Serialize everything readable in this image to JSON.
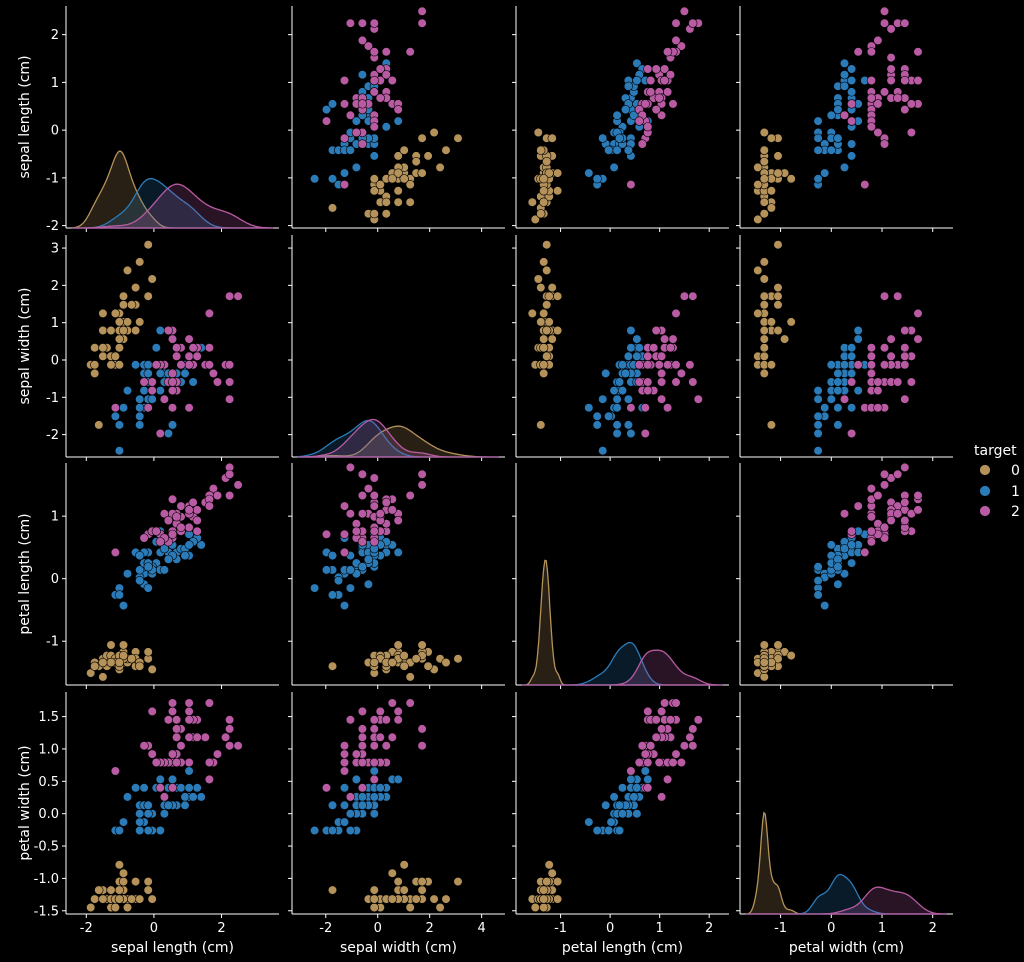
{
  "chart_data": {
    "type": "scatter",
    "title": "",
    "hue_title": "target",
    "legend_position": "right",
    "variables": [
      "sepal length (cm)",
      "sepal width (cm)",
      "petal length (cm)",
      "petal width (cm)"
    ],
    "classes": [
      {
        "label": "0",
        "color": "#b5925a"
      },
      {
        "label": "1",
        "color": "#2b7bb9"
      },
      {
        "label": "2",
        "color": "#b85ba3"
      }
    ],
    "axes": [
      {
        "label": "sepal length (cm)",
        "range": [
          -2.6,
          3.7
        ],
        "ticks": [
          "-2",
          "0",
          "2"
        ],
        "tick_values": [
          -2,
          0,
          2
        ]
      },
      {
        "label": "sepal width (cm)",
        "range": [
          -3.3,
          4.9
        ],
        "ticks": [
          "-2",
          "0",
          "2",
          "4"
        ],
        "tick_values": [
          -2,
          0,
          2,
          4
        ]
      },
      {
        "label": "petal length (cm)",
        "range": [
          -1.9,
          2.4
        ],
        "ticks": [
          "-1",
          "0",
          "1",
          "2"
        ],
        "tick_values": [
          -1,
          0,
          1,
          2
        ]
      },
      {
        "label": "petal width (cm)",
        "range": [
          -1.8,
          2.4
        ],
        "ticks": [
          "-1",
          "0",
          "1",
          "2"
        ],
        "tick_values": [
          -1,
          0,
          1,
          2
        ]
      }
    ],
    "y_axes": [
      {
        "range": [
          -2.05,
          2.6
        ],
        "ticks": [
          "-2",
          "-1",
          "0",
          "1",
          "2"
        ],
        "tick_values": [
          -2,
          -1,
          0,
          1,
          2
        ]
      },
      {
        "range": [
          -2.6,
          3.35
        ],
        "ticks": [
          "-2",
          "-1",
          "0",
          "1",
          "2",
          "3"
        ],
        "tick_values": [
          -2,
          -1,
          0,
          1,
          2,
          3
        ]
      },
      {
        "range": [
          -1.7,
          1.85
        ],
        "ticks": [
          "-1",
          "0",
          "1"
        ],
        "tick_values": [
          -1,
          0,
          1
        ]
      },
      {
        "range": [
          -1.55,
          1.88
        ],
        "ticks": [
          "-1.5",
          "-1.0",
          "-0.5",
          "0.0",
          "0.5",
          "1.0",
          "1.5"
        ],
        "tick_values": [
          -1.5,
          -1.0,
          -0.5,
          0.0,
          0.5,
          1.0,
          1.5
        ]
      }
    ],
    "kde_ymax": [
      2.6,
      3.15,
      7.2,
      7.8
    ],
    "points": [
      [
        [
          -0.9,
          1.02,
          -1.34,
          -1.32
        ],
        [
          -1.14,
          -0.13,
          -1.34,
          -1.32
        ],
        [
          -1.39,
          0.33,
          -1.4,
          -1.32
        ],
        [
          -1.51,
          0.1,
          -1.28,
          -1.32
        ],
        [
          -1.02,
          1.25,
          -1.34,
          -1.32
        ],
        [
          -0.54,
          1.94,
          -1.17,
          -1.05
        ],
        [
          -1.51,
          0.79,
          -1.34,
          -1.18
        ],
        [
          -1.02,
          0.79,
          -1.28,
          -1.32
        ],
        [
          -1.75,
          -0.36,
          -1.34,
          -1.32
        ],
        [
          -1.14,
          0.1,
          -1.28,
          -1.45
        ],
        [
          -0.54,
          1.48,
          -1.28,
          -1.32
        ],
        [
          -1.27,
          0.79,
          -1.23,
          -1.32
        ],
        [
          -1.27,
          -0.13,
          -1.34,
          -1.45
        ],
        [
          -1.87,
          -0.13,
          -1.51,
          -1.45
        ],
        [
          -0.05,
          2.17,
          -1.45,
          -1.32
        ],
        [
          -0.17,
          3.09,
          -1.28,
          -1.05
        ],
        [
          -0.54,
          1.94,
          -1.4,
          -1.05
        ],
        [
          -0.9,
          1.02,
          -1.34,
          -1.18
        ],
        [
          -0.17,
          1.71,
          -1.17,
          -1.18
        ],
        [
          -0.9,
          1.71,
          -1.28,
          -1.18
        ],
        [
          -0.54,
          0.79,
          -1.17,
          -1.32
        ],
        [
          -0.9,
          1.48,
          -1.28,
          -1.05
        ],
        [
          -1.51,
          1.25,
          -1.57,
          -1.32
        ],
        [
          -0.9,
          0.56,
          -1.17,
          -0.92
        ],
        [
          -1.27,
          0.79,
          -1.06,
          -1.32
        ],
        [
          -1.02,
          -0.13,
          -1.23,
          -1.32
        ],
        [
          -1.02,
          0.79,
          -1.23,
          -1.05
        ],
        [
          -0.78,
          1.02,
          -1.28,
          -1.32
        ],
        [
          -0.78,
          0.79,
          -1.34,
          -1.32
        ],
        [
          -1.39,
          0.33,
          -1.23,
          -1.32
        ],
        [
          -1.27,
          0.1,
          -1.23,
          -1.32
        ],
        [
          -0.54,
          0.79,
          -1.28,
          -1.05
        ],
        [
          -0.78,
          2.4,
          -1.28,
          -1.45
        ],
        [
          -0.42,
          2.63,
          -1.34,
          -1.32
        ],
        [
          -1.14,
          0.1,
          -1.28,
          -1.32
        ],
        [
          -1.02,
          0.33,
          -1.45,
          -1.32
        ],
        [
          -0.42,
          1.02,
          -1.4,
          -1.32
        ],
        [
          -1.14,
          1.25,
          -1.34,
          -1.45
        ],
        [
          -1.75,
          -0.13,
          -1.4,
          -1.32
        ],
        [
          -0.9,
          0.79,
          -1.28,
          -1.32
        ],
        [
          -1.02,
          1.02,
          -1.4,
          -1.18
        ],
        [
          -1.63,
          -1.74,
          -1.4,
          -1.18
        ],
        [
          -1.75,
          0.33,
          -1.4,
          -1.32
        ],
        [
          -1.02,
          1.02,
          -1.23,
          -0.79
        ],
        [
          -0.9,
          1.71,
          -1.06,
          -1.05
        ],
        [
          -1.27,
          -0.13,
          -1.34,
          -1.18
        ],
        [
          -0.9,
          1.71,
          -1.23,
          -1.32
        ],
        [
          -1.51,
          0.33,
          -1.34,
          -1.32
        ],
        [
          -0.66,
          1.48,
          -1.28,
          -1.32
        ],
        [
          -1.02,
          0.56,
          -1.34,
          -1.32
        ]
      ],
      [
        [
          1.4,
          0.33,
          0.54,
          0.26
        ],
        [
          0.67,
          0.33,
          0.42,
          0.4
        ],
        [
          1.28,
          0.1,
          0.65,
          0.4
        ],
        [
          -0.42,
          -1.74,
          0.14,
          0.13
        ],
        [
          0.8,
          -0.59,
          0.48,
          0.4
        ],
        [
          -0.17,
          -0.59,
          0.42,
          0.13
        ],
        [
          0.55,
          0.56,
          0.54,
          0.53
        ],
        [
          -1.14,
          -1.51,
          -0.26,
          -0.26
        ],
        [
          0.92,
          -0.36,
          0.48,
          0.13
        ],
        [
          -0.78,
          -0.82,
          0.08,
          0.26
        ],
        [
          -1.02,
          -2.43,
          -0.15,
          -0.26
        ],
        [
          0.07,
          -0.13,
          0.25,
          0.4
        ],
        [
          0.19,
          -1.97,
          0.14,
          -0.26
        ],
        [
          0.31,
          -0.36,
          0.54,
          0.26
        ],
        [
          -0.29,
          -0.36,
          -0.09,
          0.13
        ],
        [
          1.04,
          0.1,
          0.37,
          0.26
        ],
        [
          -0.29,
          -0.13,
          0.42,
          0.4
        ],
        [
          -0.05,
          -0.82,
          0.19,
          -0.26
        ],
        [
          0.43,
          -1.97,
          0.42,
          0.4
        ],
        [
          -0.29,
          -1.28,
          0.08,
          -0.13
        ],
        [
          0.07,
          0.33,
          0.59,
          0.79
        ],
        [
          0.31,
          -0.59,
          0.14,
          0.13
        ],
        [
          0.55,
          -1.28,
          0.65,
          0.4
        ],
        [
          0.31,
          -0.59,
          0.54,
          0.0
        ],
        [
          0.67,
          -0.36,
          0.31,
          0.13
        ],
        [
          0.92,
          -0.13,
          0.37,
          0.26
        ],
        [
          1.16,
          -0.59,
          0.59,
          0.26
        ],
        [
          1.04,
          -0.13,
          0.71,
          0.66
        ],
        [
          0.19,
          -0.36,
          0.42,
          0.4
        ],
        [
          -0.17,
          -1.05,
          -0.15,
          -0.26
        ],
        [
          -0.42,
          -1.51,
          0.02,
          -0.13
        ],
        [
          -0.42,
          -1.51,
          -0.03,
          -0.26
        ],
        [
          -0.05,
          -0.82,
          0.08,
          0.0
        ],
        [
          0.19,
          -0.82,
          0.76,
          0.53
        ],
        [
          -0.54,
          -0.13,
          0.42,
          0.4
        ],
        [
          0.19,
          0.79,
          0.42,
          0.53
        ],
        [
          1.04,
          0.1,
          0.54,
          0.4
        ],
        [
          0.55,
          -1.74,
          0.37,
          0.13
        ],
        [
          -0.29,
          -0.13,
          0.19,
          0.13
        ],
        [
          -0.42,
          -1.28,
          0.14,
          0.13
        ],
        [
          -0.42,
          -1.05,
          0.37,
          0.0
        ],
        [
          0.31,
          -0.13,
          0.48,
          0.26
        ],
        [
          -0.05,
          -1.05,
          0.14,
          0.0
        ],
        [
          -1.02,
          -1.74,
          -0.26,
          -0.26
        ],
        [
          -0.29,
          -0.82,
          0.25,
          0.13
        ],
        [
          -0.17,
          -0.13,
          0.25,
          0.0
        ],
        [
          -0.17,
          -0.36,
          0.25,
          0.13
        ],
        [
          0.43,
          -0.36,
          0.31,
          0.13
        ],
        [
          -0.9,
          -1.28,
          -0.43,
          -0.13
        ],
        [
          -0.17,
          -0.59,
          0.19,
          0.13
        ]
      ],
      [
        [
          0.55,
          0.56,
          1.27,
          1.71
        ],
        [
          -0.05,
          -0.82,
          0.76,
          0.92
        ],
        [
          1.52,
          -0.13,
          1.22,
          1.18
        ],
        [
          0.55,
          -0.36,
          1.04,
          0.79
        ],
        [
          0.8,
          -0.13,
          1.16,
          1.31
        ],
        [
          2.12,
          -0.13,
          1.61,
          1.18
        ],
        [
          -1.14,
          -1.28,
          0.42,
          0.66
        ],
        [
          1.76,
          -0.36,
          1.44,
          0.79
        ],
        [
          1.04,
          -1.28,
          1.16,
          0.79
        ],
        [
          1.64,
          1.25,
          1.33,
          1.71
        ],
        [
          0.8,
          0.33,
          0.76,
          1.05
        ],
        [
          0.67,
          -0.82,
          0.88,
          0.92
        ],
        [
          1.16,
          -0.13,
          0.99,
          1.18
        ],
        [
          -0.17,
          -1.28,
          0.71,
          1.05
        ],
        [
          -0.05,
          -0.59,
          0.76,
          1.58
        ],
        [
          0.67,
          0.33,
          0.88,
          1.45
        ],
        [
          0.8,
          -0.13,
          0.99,
          0.79
        ],
        [
          2.24,
          1.71,
          1.67,
          1.31
        ],
        [
          2.24,
          -1.05,
          1.78,
          1.45
        ],
        [
          0.19,
          -1.97,
          0.71,
          0.4
        ],
        [
          1.28,
          0.33,
          1.1,
          1.45
        ],
        [
          -0.29,
          -0.59,
          0.65,
          1.05
        ],
        [
          2.24,
          -0.59,
          1.67,
          1.05
        ],
        [
          0.55,
          -0.82,
          0.65,
          0.79
        ],
        [
          1.04,
          0.56,
          1.1,
          1.18
        ],
        [
          1.64,
          0.33,
          1.27,
          0.79
        ],
        [
          0.43,
          -0.59,
          0.59,
          0.79
        ],
        [
          0.31,
          -0.13,
          0.65,
          0.79
        ],
        [
          0.67,
          -0.59,
          1.04,
          1.18
        ],
        [
          1.64,
          -0.13,
          1.16,
          0.53
        ],
        [
          1.88,
          -0.59,
          1.33,
          0.92
        ],
        [
          2.49,
          1.71,
          1.5,
          1.05
        ],
        [
          0.67,
          -0.59,
          1.04,
          1.31
        ],
        [
          0.55,
          -0.59,
          0.76,
          0.4
        ],
        [
          0.31,
          -1.05,
          1.04,
          0.26
        ],
        [
          2.24,
          -0.13,
          1.33,
          1.45
        ],
        [
          0.55,
          0.79,
          1.04,
          1.58
        ],
        [
          0.67,
          0.1,
          0.99,
          0.79
        ],
        [
          0.19,
          -0.13,
          0.59,
          0.79
        ],
        [
          1.28,
          0.1,
          0.93,
          1.18
        ],
        [
          1.04,
          0.1,
          1.04,
          1.58
        ],
        [
          1.28,
          0.1,
          0.76,
          1.45
        ],
        [
          -0.05,
          -0.82,
          0.76,
          0.92
        ],
        [
          1.16,
          0.33,
          1.22,
          1.45
        ],
        [
          1.04,
          0.56,
          1.1,
          1.71
        ],
        [
          1.04,
          -0.13,
          0.82,
          1.45
        ],
        [
          0.55,
          -1.28,
          0.71,
          0.92
        ],
        [
          0.8,
          -0.13,
          0.82,
          1.05
        ],
        [
          0.43,
          0.79,
          0.93,
          1.45
        ],
        [
          0.07,
          -0.13,
          0.76,
          0.79
        ]
      ]
    ]
  }
}
